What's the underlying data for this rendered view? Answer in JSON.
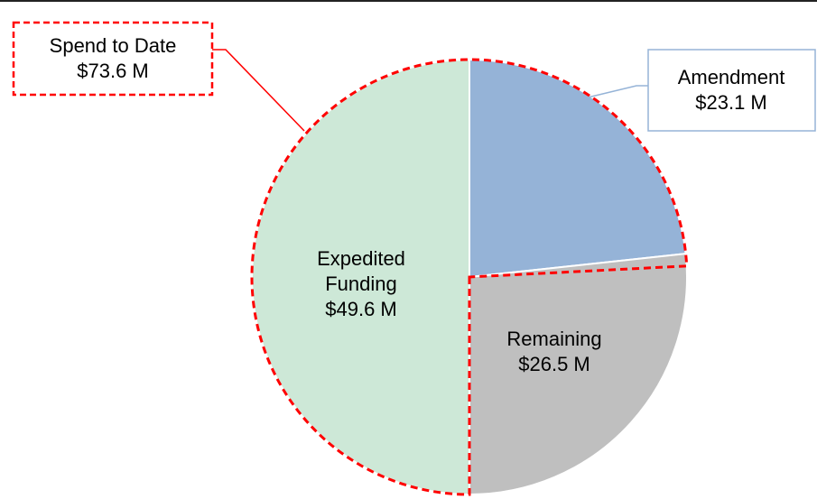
{
  "chart_data": {
    "type": "pie",
    "categories": [
      "Amendment",
      "Remaining",
      "Expedited Funding"
    ],
    "values": [
      23.1,
      26.5,
      49.6
    ],
    "value_labels": [
      "$23.1 M",
      "$26.5 M",
      "$49.6 M"
    ],
    "colors": [
      "#95b3d7",
      "#bfbfbf",
      "#cde8d7"
    ],
    "annotation": {
      "label": "Spend to Date",
      "value": 73.6,
      "value_label": "$73.6 M",
      "color": "#ff0000"
    }
  }
}
